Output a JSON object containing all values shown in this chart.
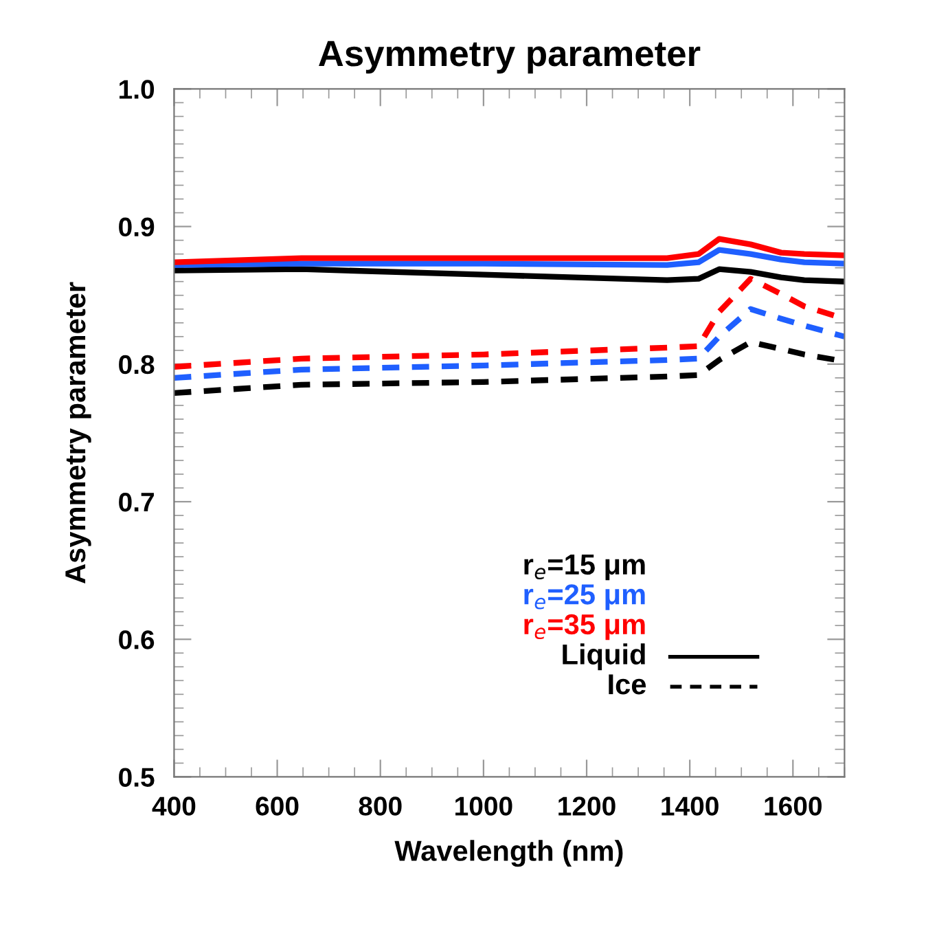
{
  "chart_data": {
    "type": "line",
    "title": "Asymmetry parameter",
    "xlabel": "Wavelength (nm)",
    "ylabel": "Asymmetry parameter",
    "x": [
      400,
      647,
      1000,
      1356,
      1417,
      1457,
      1518,
      1577,
      1622,
      1700
    ],
    "series": [
      {
        "color": "#000000",
        "line_style": "solid",
        "values": [
          0.868,
          0.869,
          0.865,
          0.861,
          0.862,
          0.869,
          0.867,
          0.863,
          0.861,
          0.86
        ]
      },
      {
        "color": "#1f5fff",
        "line_style": "solid",
        "values": [
          0.872,
          0.873,
          0.873,
          0.872,
          0.874,
          0.883,
          0.88,
          0.876,
          0.874,
          0.873
        ]
      },
      {
        "color": "#ff0000",
        "line_style": "solid",
        "values": [
          0.874,
          0.877,
          0.877,
          0.877,
          0.88,
          0.891,
          0.887,
          0.881,
          0.88,
          0.879
        ]
      },
      {
        "color": "#000000",
        "line_style": "dashed",
        "values": [
          0.779,
          0.785,
          0.787,
          0.791,
          0.792,
          0.803,
          0.816,
          0.811,
          0.807,
          0.802
        ]
      },
      {
        "color": "#1f5fff",
        "line_style": "dashed",
        "values": [
          0.79,
          0.796,
          0.799,
          0.803,
          0.804,
          0.82,
          0.84,
          0.833,
          0.828,
          0.82
        ]
      },
      {
        "color": "#ff0000",
        "line_style": "dashed",
        "values": [
          0.798,
          0.804,
          0.807,
          0.812,
          0.813,
          0.838,
          0.862,
          0.851,
          0.842,
          0.833
        ]
      }
    ],
    "annotations": [
      "r$_{e}$=15 μm",
      "r$_{e}$=25 μm",
      "r$_{e}$=35 μm",
      "Liquid",
      "Ice"
    ],
    "xlim": [
      400,
      1700
    ],
    "xticks": [
      400,
      600,
      800,
      1000,
      1200,
      1400,
      1600
    ],
    "ylim": [
      0.5,
      1.0
    ],
    "yticks": [
      {
        "value": 0.5,
        "label": "0.5"
      },
      {
        "value": 0.6,
        "label": "0.6"
      },
      {
        "value": 0.7,
        "label": "0.7"
      },
      {
        "value": 0.8,
        "label": "0.8"
      },
      {
        "value": 0.9,
        "label": "0.9"
      },
      {
        "value": 1.0,
        "label": "1.0"
      }
    ],
    "grid": false
  }
}
